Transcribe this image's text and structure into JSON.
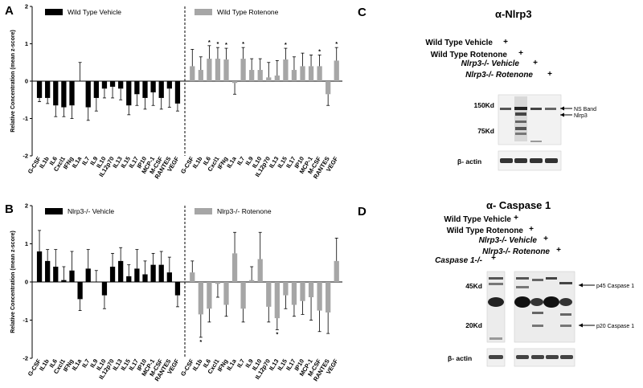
{
  "chart_data": [
    {
      "type": "bar",
      "panel": "A",
      "ylabel": "Relative Concentration (mean z-score)",
      "ylim": [
        -2,
        2
      ],
      "yticks": [
        -2,
        -1,
        0,
        1,
        2
      ],
      "legend": [
        "Wild Type Vehicle",
        "Wild Type Rotenone"
      ],
      "colors": {
        "vehicle": "#000000",
        "rotenone": "#a6a6a6"
      },
      "categories": [
        "G-CSF",
        "IL1b",
        "IL6",
        "Cxcl1",
        "IFNg",
        "IL1a",
        "IL7",
        "IL9",
        "IL10",
        "IL12p70",
        "IL13",
        "IL15",
        "IL17",
        "IP10",
        "MCP-1",
        "M-CSF",
        "RANTES",
        "VEGF"
      ],
      "series": [
        {
          "name": "Wild Type Vehicle",
          "values": [
            -0.45,
            -0.45,
            -0.65,
            -0.7,
            -0.65,
            0.0,
            -0.7,
            -0.45,
            -0.2,
            -0.15,
            -0.2,
            -0.65,
            -0.35,
            -0.45,
            -0.3,
            -0.45,
            -0.2,
            -0.6
          ],
          "errors": [
            0.1,
            0.15,
            0.3,
            0.25,
            0.35,
            0.5,
            0.35,
            0.35,
            0.25,
            0.3,
            0.3,
            0.25,
            0.3,
            0.3,
            0.35,
            0.3,
            0.5,
            0.2
          ]
        },
        {
          "name": "Wild Type Rotenone",
          "values": [
            0.4,
            0.3,
            0.6,
            0.6,
            0.58,
            -0.05,
            0.6,
            0.3,
            0.3,
            0.1,
            0.15,
            0.58,
            0.3,
            0.4,
            0.4,
            0.4,
            -0.35,
            0.55
          ],
          "errors": [
            0.45,
            0.35,
            0.35,
            0.3,
            0.3,
            0.3,
            0.3,
            0.3,
            0.3,
            0.4,
            0.4,
            0.3,
            0.35,
            0.35,
            0.3,
            0.3,
            0.3,
            0.35
          ],
          "significant": [
            false,
            false,
            true,
            true,
            true,
            false,
            true,
            false,
            false,
            false,
            false,
            true,
            false,
            false,
            false,
            true,
            false,
            true
          ]
        }
      ]
    },
    {
      "type": "bar",
      "panel": "B",
      "ylabel": "Relative Concentration (mean z-score)",
      "ylim": [
        -2,
        2
      ],
      "yticks": [
        -2,
        -1,
        0,
        1,
        2
      ],
      "legend": [
        "Nlrp3-/- Vehicle",
        "Nlrp3-/- Rotenone"
      ],
      "colors": {
        "vehicle": "#000000",
        "rotenone": "#a6a6a6"
      },
      "categories": [
        "G-CSF",
        "IL1b",
        "IL6",
        "Cxcl1",
        "IFNg",
        "IL1a",
        "IL7",
        "IL9",
        "IL10",
        "IL12p70",
        "IL13",
        "IL15",
        "IL17",
        "IP10",
        "MCP-1",
        "M-CSF",
        "RANTES",
        "VEGF"
      ],
      "series": [
        {
          "name": "Nlrp3-/- Vehicle",
          "values": [
            0.8,
            0.55,
            0.4,
            0.05,
            0.3,
            -0.45,
            0.35,
            0.0,
            -0.35,
            0.4,
            0.55,
            0.15,
            0.35,
            0.2,
            0.45,
            0.45,
            0.25,
            -0.35
          ],
          "errors": [
            0.55,
            0.3,
            0.45,
            0.35,
            0.5,
            0.3,
            0.5,
            0.3,
            0.35,
            0.35,
            0.35,
            0.3,
            0.5,
            0.35,
            0.3,
            0.35,
            0.4,
            0.3
          ]
        },
        {
          "name": "Nlrp3-/- Rotenone",
          "values": [
            0.25,
            -0.85,
            -0.7,
            -0.05,
            -0.6,
            0.75,
            -0.7,
            0.05,
            0.6,
            -0.65,
            -0.95,
            -0.35,
            -0.6,
            -0.5,
            -0.4,
            -0.75,
            -0.8,
            0.55
          ],
          "errors": [
            0.3,
            0.6,
            0.35,
            0.35,
            0.3,
            0.55,
            0.35,
            0.35,
            0.7,
            0.4,
            0.3,
            0.35,
            0.3,
            0.35,
            0.6,
            0.55,
            0.55,
            0.6
          ],
          "significant": [
            false,
            true,
            false,
            false,
            false,
            false,
            false,
            false,
            false,
            false,
            true,
            false,
            false,
            false,
            false,
            false,
            false,
            false
          ]
        }
      ]
    }
  ],
  "panel_C": {
    "letter": "C",
    "title": "α-Nlrp3",
    "lanes": [
      "Wild Type Vehicle",
      "Wild Type Rotenone",
      "Nlrp3-/- Vehicle",
      "Nlrp3-/- Rotenone"
    ],
    "plus": "+",
    "mw": [
      "150Kd",
      "75Kd"
    ],
    "bands": [
      "NS Band",
      "Nlrp3"
    ],
    "loading": "β- actin"
  },
  "panel_D": {
    "letter": "D",
    "title": "α- Caspase 1",
    "lanes": [
      "Wild Type Vehicle",
      "Wild Type Rotenone",
      "Nlrp3-/- Vehicle",
      "Nlrp3-/- Rotenone",
      "Caspase 1-/-"
    ],
    "plus": "+",
    "mw": [
      "45Kd",
      "20Kd"
    ],
    "bands": [
      "p45 Caspase 1",
      "p20 Caspase 1"
    ],
    "loading": "β- actin"
  },
  "panel_letters": {
    "A": "A",
    "B": "B"
  },
  "star": "*"
}
